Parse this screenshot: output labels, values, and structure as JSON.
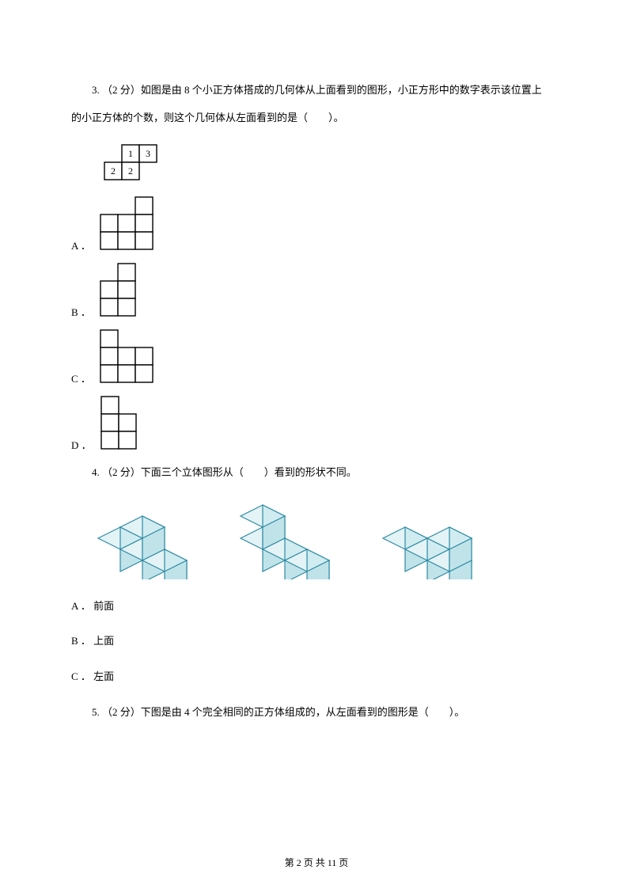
{
  "q3": {
    "text_line1": "3. （2 分）如图是由 8 个小正方体搭成的几何体从上面看到的图形，小正方形中的数字表示该位置上",
    "text_line2": "的小正方体的个数，则这个几何体从左面看到的是（　　）。",
    "topview": {
      "cell": 22,
      "cells": [
        {
          "c": 1,
          "r": 0,
          "v": "1"
        },
        {
          "c": 2,
          "r": 0,
          "v": "3"
        },
        {
          "c": 0,
          "r": 1,
          "v": "2"
        },
        {
          "c": 1,
          "r": 1,
          "v": "2"
        }
      ]
    },
    "options": {
      "A": {
        "label": "A ．",
        "cell": 22,
        "cells": [
          {
            "c": 2,
            "r": 0
          },
          {
            "c": 0,
            "r": 1
          },
          {
            "c": 1,
            "r": 1
          },
          {
            "c": 2,
            "r": 1
          },
          {
            "c": 0,
            "r": 2
          },
          {
            "c": 1,
            "r": 2
          },
          {
            "c": 2,
            "r": 2
          }
        ]
      },
      "B": {
        "label": "B ．",
        "cell": 22,
        "cells": [
          {
            "c": 1,
            "r": 0
          },
          {
            "c": 0,
            "r": 1
          },
          {
            "c": 1,
            "r": 1
          },
          {
            "c": 0,
            "r": 2
          },
          {
            "c": 1,
            "r": 2
          }
        ]
      },
      "C": {
        "label": "C ．",
        "cell": 22,
        "cells": [
          {
            "c": 0,
            "r": 0
          },
          {
            "c": 0,
            "r": 1
          },
          {
            "c": 1,
            "r": 1
          },
          {
            "c": 2,
            "r": 1
          },
          {
            "c": 0,
            "r": 2
          },
          {
            "c": 1,
            "r": 2
          },
          {
            "c": 2,
            "r": 2
          }
        ]
      },
      "D": {
        "label": "D ．",
        "cell": 22,
        "cells": [
          {
            "c": 0,
            "r": 0
          },
          {
            "c": 0,
            "r": 1
          },
          {
            "c": 1,
            "r": 1
          },
          {
            "c": 0,
            "r": 2
          },
          {
            "c": 1,
            "r": 2
          }
        ]
      }
    }
  },
  "q4": {
    "text": "4. （2 分）下面三个立体图形从（　　）看到的形状不同。",
    "iso": {
      "cell": 28,
      "colors": {
        "top": "#e3f3f6",
        "front": "#d0ecf0",
        "side": "#c0e3e9",
        "stroke": "#2d8aa3"
      },
      "fig1": {
        "base": [
          [
            0,
            0
          ],
          [
            1,
            0
          ],
          [
            2,
            0
          ]
        ],
        "stack": [
          [
            1,
            0,
            1
          ]
        ]
      },
      "fig2": {
        "base": [
          [
            0,
            0
          ],
          [
            1,
            0
          ],
          [
            2,
            0
          ]
        ],
        "stack": [
          [
            0,
            0,
            1
          ]
        ]
      },
      "fig3": {
        "base": [
          [
            0,
            0
          ],
          [
            1,
            0
          ],
          [
            2,
            0
          ]
        ],
        "stack": [
          [
            2,
            0,
            1
          ]
        ]
      }
    },
    "options": {
      "A": {
        "label": "A ．",
        "text": "前面"
      },
      "B": {
        "label": "B ．",
        "text": "上面"
      },
      "C": {
        "label": "C ．",
        "text": "左面"
      }
    }
  },
  "q5": {
    "text": "5. （2 分）下图是由 4 个完全相同的正方体组成的，从左面看到的图形是（　　）。"
  },
  "footer": "第 2 页 共 11 页"
}
